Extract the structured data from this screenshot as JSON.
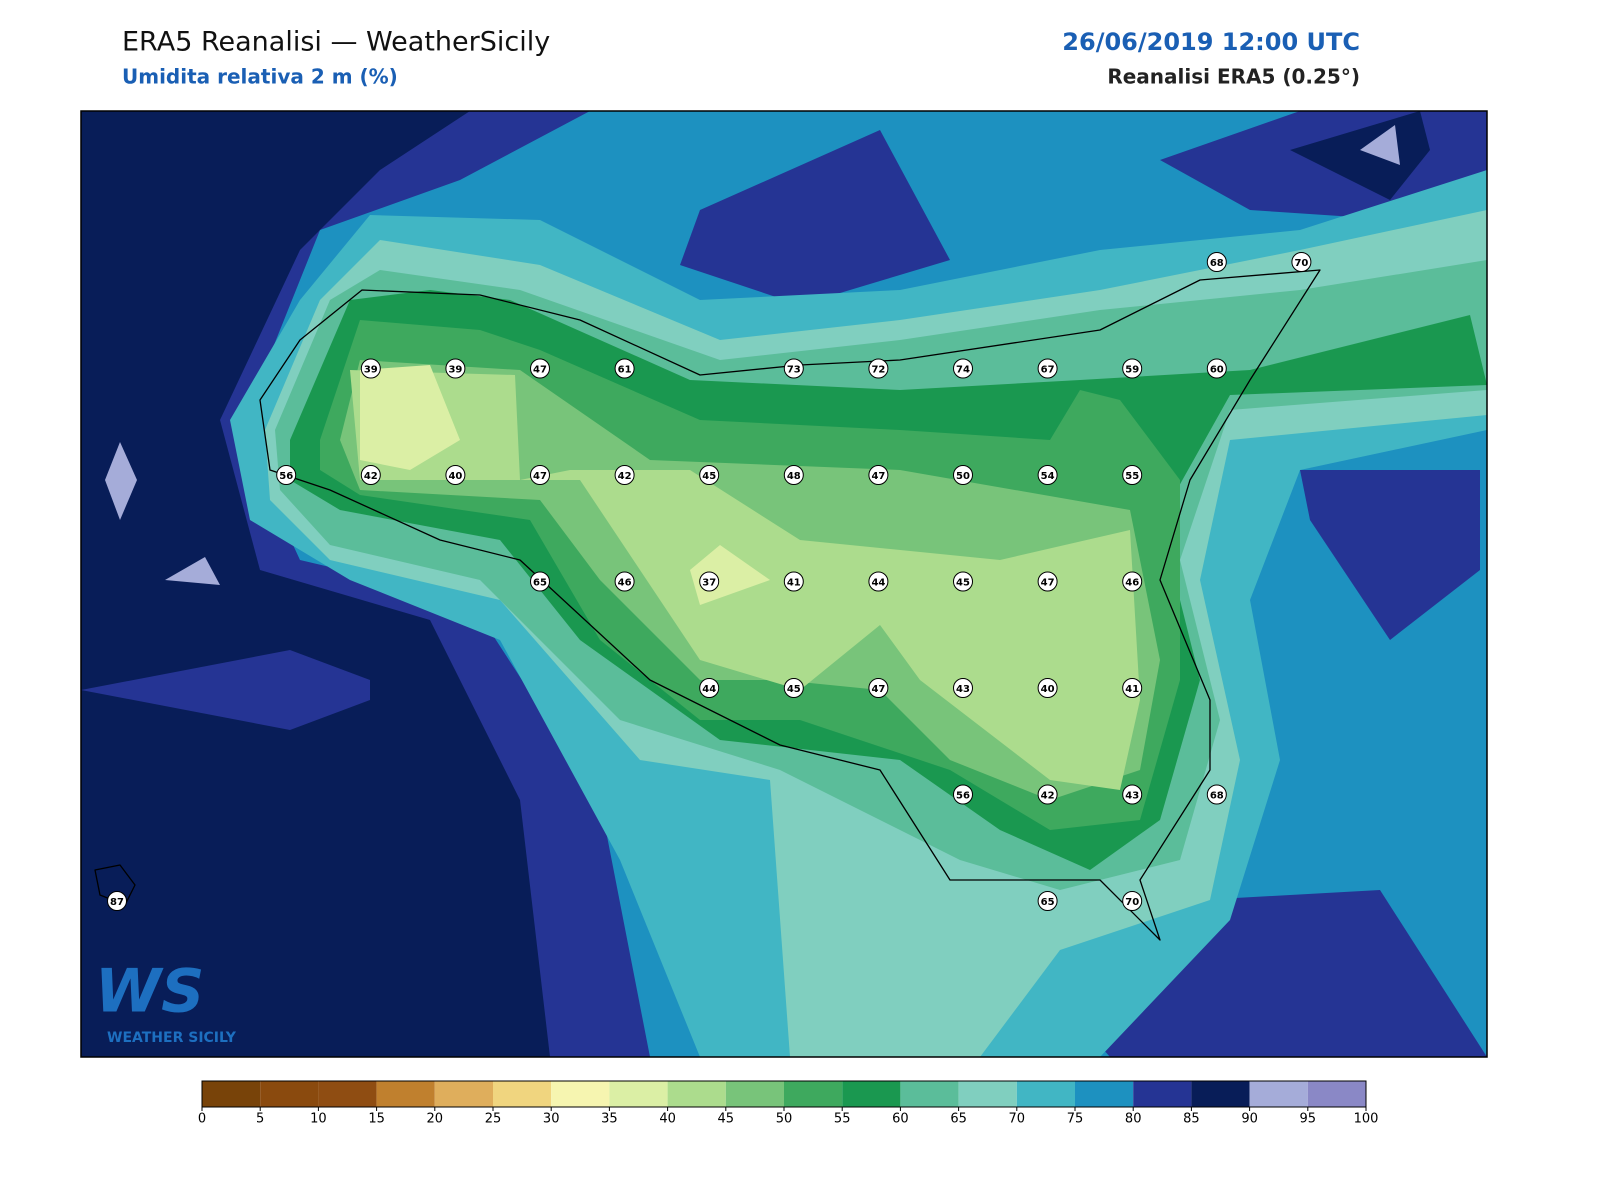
{
  "header": {
    "title": "ERA5 Reanalisi — WeatherSicily",
    "subtitle": "Umidita relativa 2 m (%)",
    "datetime": "26/06/2019 12:00 UTC",
    "source": "Reanalisi ERA5 (0.25°)"
  },
  "logo": {
    "letters": "WS",
    "name": "WEATHER SICILY"
  },
  "stations": {
    "grid": [
      [
        null,
        null,
        null,
        null,
        null,
        null,
        null,
        null,
        null,
        null,
        null,
        null,
        null,
        68,
        70
      ],
      [
        null,
        null,
        null,
        39,
        39,
        47,
        61,
        null,
        73,
        72,
        74,
        67,
        59,
        60,
        null
      ],
      [
        null,
        null,
        56,
        42,
        40,
        47,
        42,
        45,
        48,
        47,
        50,
        54,
        55,
        null,
        null
      ],
      [
        null,
        null,
        null,
        null,
        null,
        65,
        46,
        37,
        41,
        44,
        45,
        47,
        46,
        null,
        null
      ],
      [
        null,
        null,
        null,
        null,
        null,
        null,
        null,
        44,
        45,
        47,
        43,
        40,
        41,
        null,
        null
      ],
      [
        null,
        null,
        null,
        null,
        null,
        null,
        null,
        null,
        null,
        null,
        56,
        42,
        43,
        68,
        null
      ],
      [
        87,
        null,
        null,
        null,
        null,
        null,
        null,
        null,
        null,
        null,
        null,
        65,
        70,
        null,
        null
      ]
    ]
  },
  "colorbar": {
    "levels": [
      0,
      5,
      10,
      15,
      20,
      25,
      30,
      35,
      40,
      45,
      50,
      55,
      60,
      65,
      70,
      75,
      80,
      85,
      90,
      95,
      100
    ],
    "colors": [
      "#784309",
      "#8a4a0e",
      "#8f4d12",
      "#c0802e",
      "#dfae5c",
      "#f0d57f",
      "#f6f5b0",
      "#dbefa5",
      "#acdc8d",
      "#78c47a",
      "#3ea95e",
      "#1a9850",
      "#5bbd9a",
      "#80cfbf",
      "#41b6c4",
      "#1d91c0",
      "#253494",
      "#081d58",
      "#a5acd9",
      "#8a88c6"
    ]
  }
}
